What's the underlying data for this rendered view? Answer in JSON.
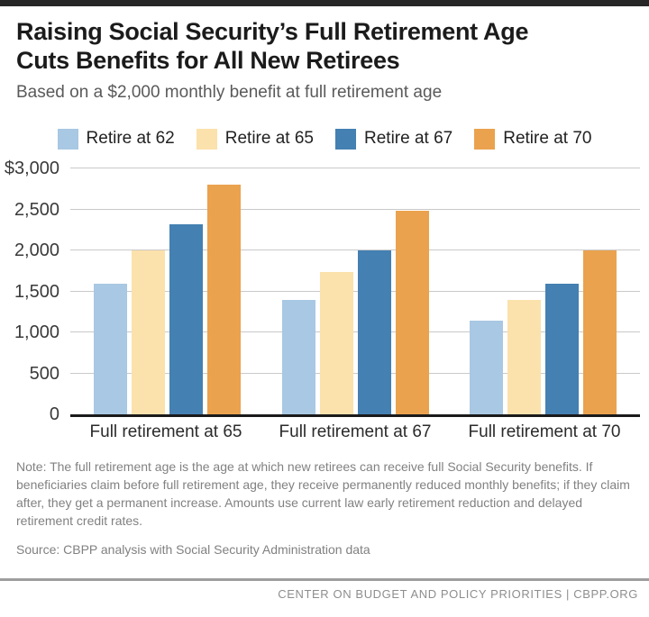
{
  "header": {
    "title_line1": "Raising Social Security’s Full Retirement Age",
    "title_line2": "Cuts Benefits for All New Retirees",
    "subtitle": "Based on a $2,000 monthly benefit at full retirement age"
  },
  "chart_data": {
    "type": "bar",
    "title": "Raising Social Security’s Full Retirement Age Cuts Benefits for All New Retirees",
    "subtitle": "Based on a $2,000 monthly benefit at full retirement age",
    "categories": [
      "Full retirement at 65",
      "Full retirement at 67",
      "Full retirement at 70"
    ],
    "series": [
      {
        "name": "Retire at 62",
        "color": "#a8c8e3",
        "values": [
          1600,
          1400,
          1140
        ]
      },
      {
        "name": "Retire at 65",
        "color": "#fbe1ab",
        "values": [
          2000,
          1733,
          1400
        ]
      },
      {
        "name": "Retire at 67",
        "color": "#4480b2",
        "values": [
          2320,
          2000,
          1600
        ]
      },
      {
        "name": "Retire at 70",
        "color": "#eaa24e",
        "values": [
          2800,
          2480,
          2000
        ]
      }
    ],
    "ylim": [
      0,
      3000
    ],
    "ytick_interval": 500,
    "yticks": [
      {
        "value": 3000,
        "label": "$3,000"
      },
      {
        "value": 2500,
        "label": "2,500"
      },
      {
        "value": 2000,
        "label": "2,000"
      },
      {
        "value": 1500,
        "label": "1,500"
      },
      {
        "value": 1000,
        "label": "1,000"
      },
      {
        "value": 500,
        "label": "500"
      },
      {
        "value": 0,
        "label": "0"
      }
    ],
    "grid": true,
    "legend_position": "top"
  },
  "note": "Note: The full retirement age is the age at which new retirees can receive full Social Security benefits. If beneficiaries claim before full retirement age, they receive permanently reduced monthly benefits; if they claim after, they get a permanent increase. Amounts use current law early retirement reduction and delayed retirement credit rates.",
  "source": "Source: CBPP analysis with Social Security Administration data",
  "footer": "CENTER ON BUDGET AND POLICY PRIORITIES | CBPP.ORG"
}
